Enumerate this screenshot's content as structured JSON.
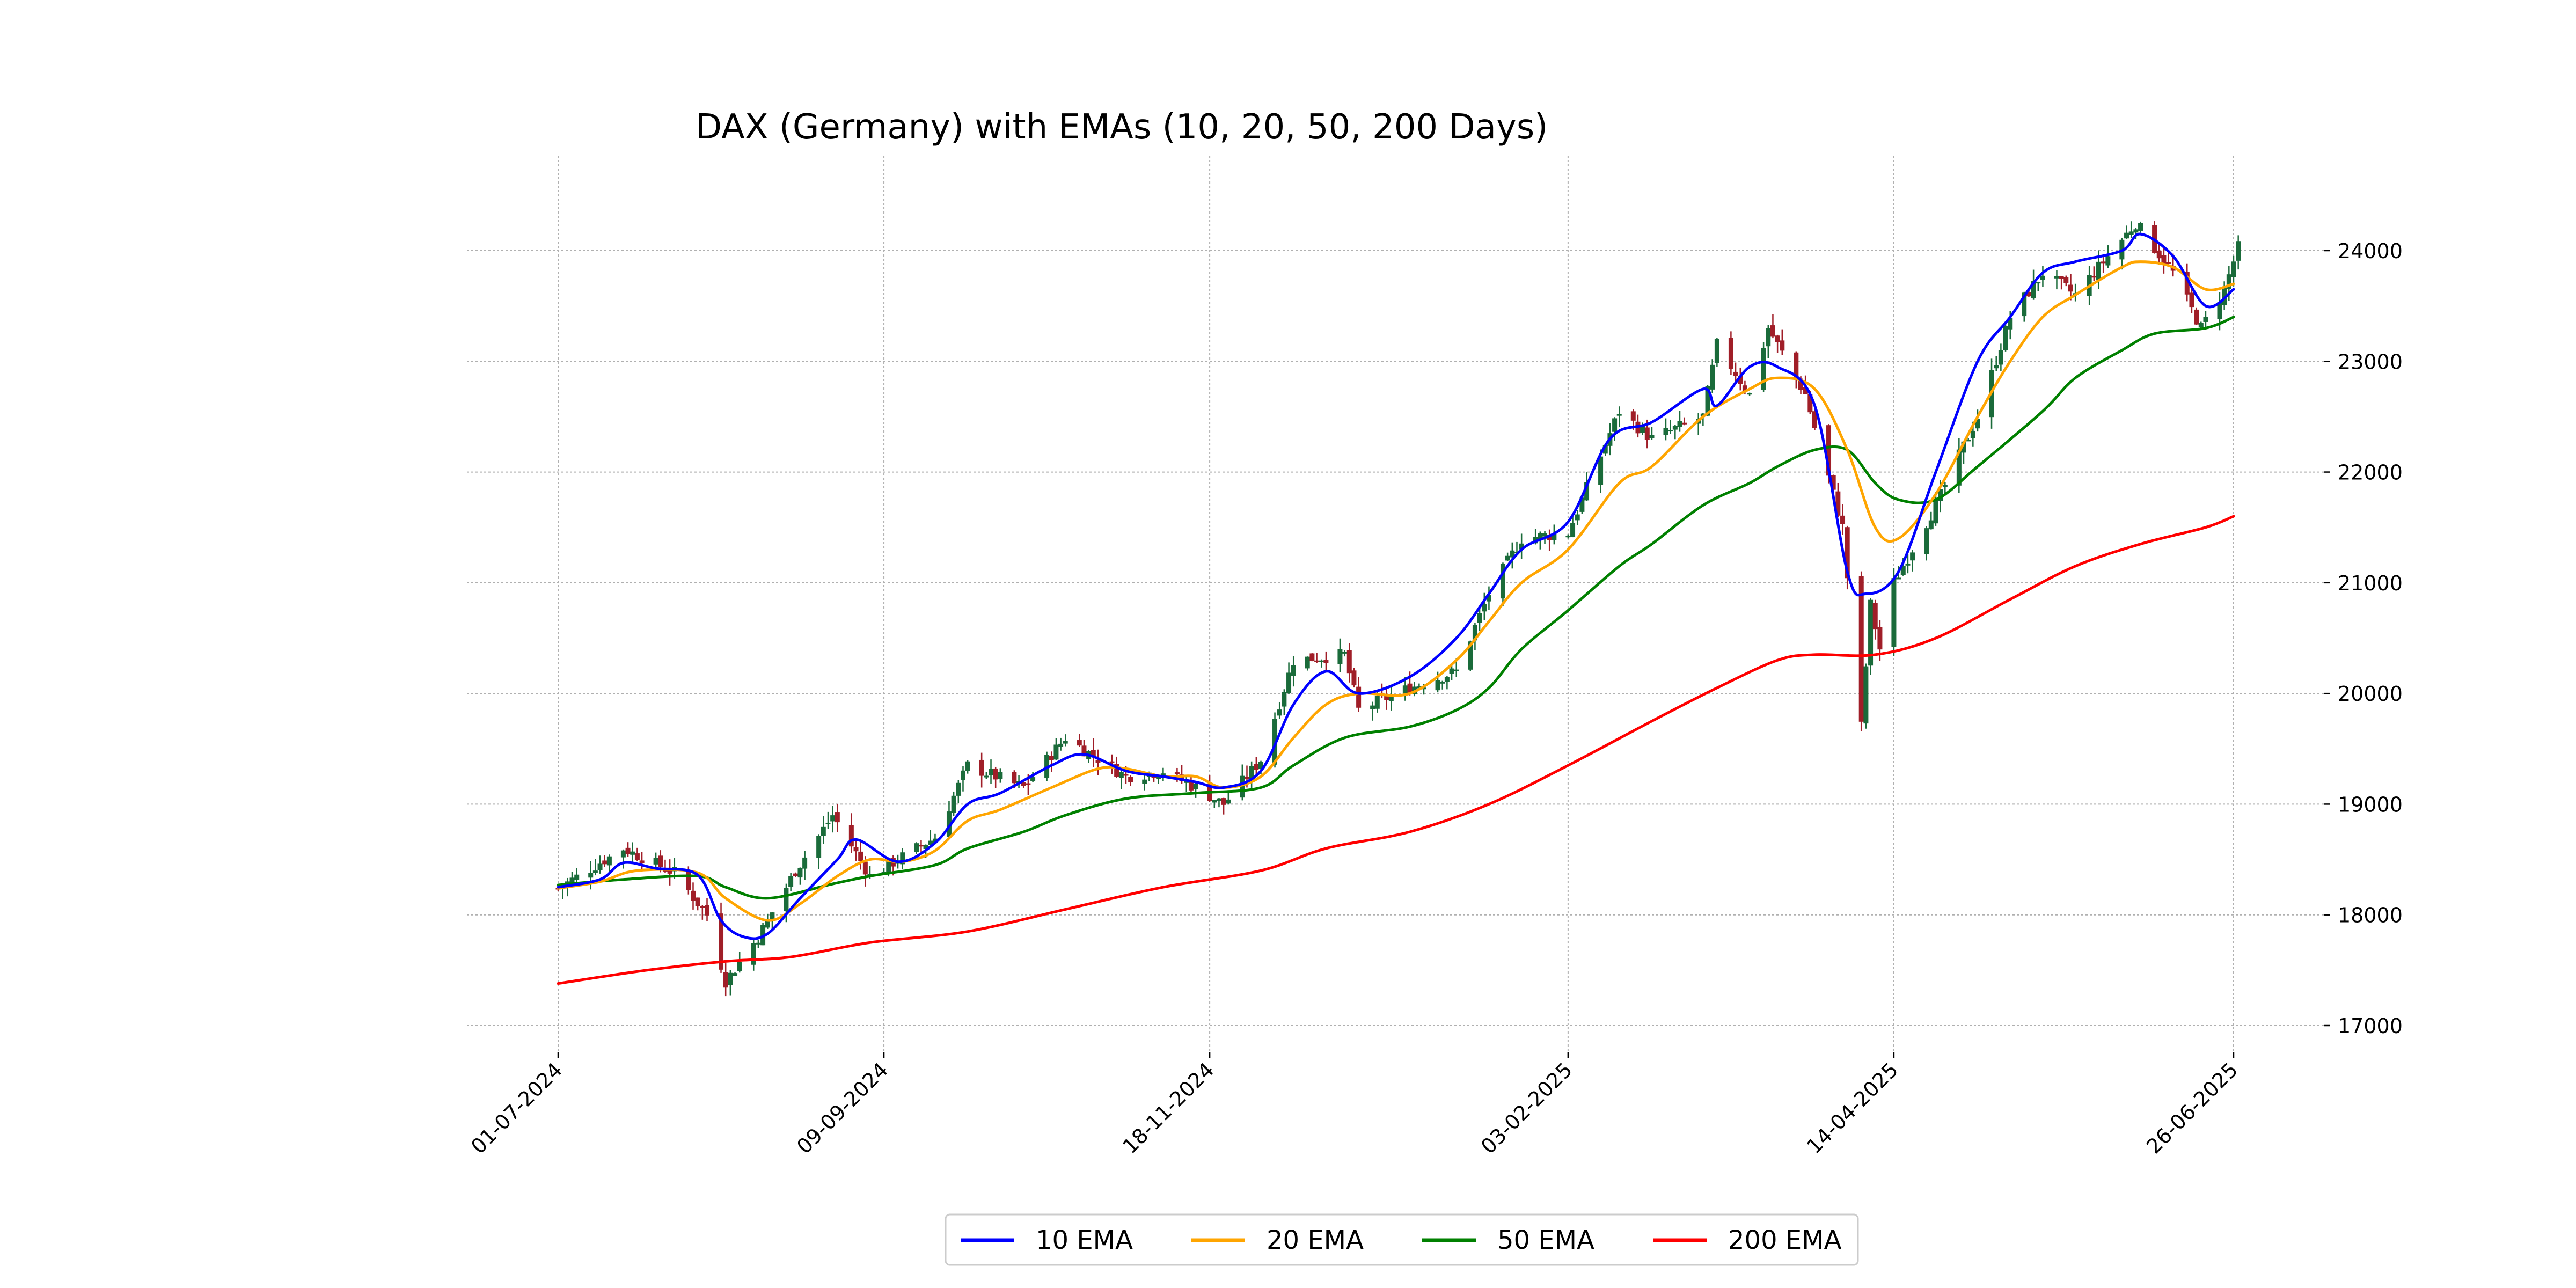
{
  "chart_data": {
    "type": "line",
    "title": "DAX (Germany) with EMAs (10, 20, 50, 200 Days)",
    "xlabel": "",
    "ylabel": "",
    "x_ticks": [
      "01-07-2024",
      "09-09-2024",
      "18-11-2024",
      "03-02-2025",
      "14-04-2025",
      "26-06-2025"
    ],
    "y_ticks": [
      17000,
      18000,
      19000,
      20000,
      21000,
      22000,
      23000,
      24000
    ],
    "ylim": [
      16650,
      24850
    ],
    "xlim": [
      "2024-06-15",
      "2025-07-18"
    ],
    "grid": true,
    "y_axis_side": "right",
    "legend_position": "bottom-center",
    "candlestick": {
      "up_color": "#1a6b3a",
      "down_color": "#a01e28",
      "anchors": [
        [
          "2024-07-01",
          18240
        ],
        [
          "2024-07-15",
          18600
        ],
        [
          "2024-07-26",
          18380
        ],
        [
          "2024-08-02",
          18000
        ],
        [
          "2024-08-06",
          17400
        ],
        [
          "2024-08-13",
          17800
        ],
        [
          "2024-08-21",
          18400
        ],
        [
          "2024-08-29",
          18900
        ],
        [
          "2024-09-06",
          18350
        ],
        [
          "2024-09-20",
          18700
        ],
        [
          "2024-09-27",
          19350
        ],
        [
          "2024-10-09",
          19150
        ],
        [
          "2024-10-18",
          19600
        ],
        [
          "2024-10-31",
          19250
        ],
        [
          "2024-11-08",
          19300
        ],
        [
          "2024-11-15",
          19150
        ],
        [
          "2024-11-21",
          19000
        ],
        [
          "2024-11-29",
          19400
        ],
        [
          "2024-12-06",
          20300
        ],
        [
          "2024-12-17",
          20350
        ],
        [
          "2024-12-20",
          19850
        ],
        [
          "2024-12-31",
          20050
        ],
        [
          "2025-01-10",
          20200
        ],
        [
          "2025-01-17",
          20900
        ],
        [
          "2025-01-24",
          21400
        ],
        [
          "2025-02-03",
          21450
        ],
        [
          "2025-02-14",
          22550
        ],
        [
          "2025-02-21",
          22300
        ],
        [
          "2025-03-04",
          22500
        ],
        [
          "2025-03-07",
          23150
        ],
        [
          "2025-03-14",
          22700
        ],
        [
          "2025-03-18",
          23300
        ],
        [
          "2025-03-26",
          22700
        ],
        [
          "2025-04-03",
          21500
        ],
        [
          "2025-04-07",
          19700
        ],
        [
          "2025-04-09",
          20800
        ],
        [
          "2025-04-11",
          20400
        ],
        [
          "2025-04-14",
          21000
        ],
        [
          "2025-04-23",
          21700
        ],
        [
          "2025-05-02",
          22500
        ],
        [
          "2025-05-09",
          23400
        ],
        [
          "2025-05-16",
          23800
        ],
        [
          "2025-05-23",
          23600
        ],
        [
          "2025-06-05",
          24250
        ],
        [
          "2025-06-13",
          23800
        ],
        [
          "2025-06-19",
          23300
        ],
        [
          "2025-06-24",
          23650
        ],
        [
          "2025-06-27",
          24030
        ]
      ]
    },
    "series": [
      {
        "name": "10 EMA",
        "color": "#0000ff",
        "points": [
          [
            "2024-07-01",
            18250
          ],
          [
            "2024-07-10",
            18320
          ],
          [
            "2024-07-15",
            18470
          ],
          [
            "2024-07-22",
            18420
          ],
          [
            "2024-07-31",
            18360
          ],
          [
            "2024-08-05",
            17950
          ],
          [
            "2024-08-10",
            17800
          ],
          [
            "2024-08-15",
            17830
          ],
          [
            "2024-08-22",
            18150
          ],
          [
            "2024-08-30",
            18500
          ],
          [
            "2024-09-03",
            18680
          ],
          [
            "2024-09-12",
            18480
          ],
          [
            "2024-09-20",
            18650
          ],
          [
            "2024-09-27",
            19000
          ],
          [
            "2024-10-04",
            19100
          ],
          [
            "2024-10-15",
            19350
          ],
          [
            "2024-10-22",
            19450
          ],
          [
            "2024-10-31",
            19300
          ],
          [
            "2024-11-08",
            19250
          ],
          [
            "2024-11-15",
            19200
          ],
          [
            "2024-11-21",
            19150
          ],
          [
            "2024-11-29",
            19300
          ],
          [
            "2024-12-06",
            19900
          ],
          [
            "2024-12-13",
            20200
          ],
          [
            "2024-12-20",
            20000
          ],
          [
            "2024-12-31",
            20150
          ],
          [
            "2025-01-10",
            20500
          ],
          [
            "2025-01-17",
            20900
          ],
          [
            "2025-01-24",
            21300
          ],
          [
            "2025-02-03",
            21550
          ],
          [
            "2025-02-12",
            22300
          ],
          [
            "2025-02-21",
            22450
          ],
          [
            "2025-03-04",
            22750
          ],
          [
            "2025-03-07",
            22600
          ],
          [
            "2025-03-14",
            22950
          ],
          [
            "2025-03-20",
            22950
          ],
          [
            "2025-03-28",
            22600
          ],
          [
            "2025-04-04",
            21100
          ],
          [
            "2025-04-08",
            20900
          ],
          [
            "2025-04-15",
            21100
          ],
          [
            "2025-04-23",
            22000
          ],
          [
            "2025-05-02",
            23000
          ],
          [
            "2025-05-09",
            23400
          ],
          [
            "2025-05-16",
            23800
          ],
          [
            "2025-05-23",
            23900
          ],
          [
            "2025-06-02",
            24000
          ],
          [
            "2025-06-06",
            24150
          ],
          [
            "2025-06-13",
            23950
          ],
          [
            "2025-06-20",
            23500
          ],
          [
            "2025-06-26",
            23650
          ]
        ]
      },
      {
        "name": "20 EMA",
        "color": "#ffa500",
        "points": [
          [
            "2024-07-01",
            18240
          ],
          [
            "2024-07-10",
            18300
          ],
          [
            "2024-07-18",
            18400
          ],
          [
            "2024-07-31",
            18380
          ],
          [
            "2024-08-06",
            18150
          ],
          [
            "2024-08-15",
            17950
          ],
          [
            "2024-08-22",
            18100
          ],
          [
            "2024-08-30",
            18350
          ],
          [
            "2024-09-06",
            18500
          ],
          [
            "2024-09-13",
            18480
          ],
          [
            "2024-09-20",
            18580
          ],
          [
            "2024-09-27",
            18850
          ],
          [
            "2024-10-04",
            18950
          ],
          [
            "2024-10-15",
            19150
          ],
          [
            "2024-10-25",
            19320
          ],
          [
            "2024-10-31",
            19320
          ],
          [
            "2024-11-08",
            19250
          ],
          [
            "2024-11-15",
            19250
          ],
          [
            "2024-11-21",
            19150
          ],
          [
            "2024-11-29",
            19250
          ],
          [
            "2024-12-06",
            19600
          ],
          [
            "2024-12-13",
            19900
          ],
          [
            "2024-12-20",
            20000
          ],
          [
            "2024-12-31",
            20000
          ],
          [
            "2025-01-10",
            20300
          ],
          [
            "2025-01-17",
            20650
          ],
          [
            "2025-01-24",
            21000
          ],
          [
            "2025-02-03",
            21300
          ],
          [
            "2025-02-14",
            21900
          ],
          [
            "2025-02-21",
            22050
          ],
          [
            "2025-03-04",
            22500
          ],
          [
            "2025-03-14",
            22750
          ],
          [
            "2025-03-20",
            22850
          ],
          [
            "2025-03-28",
            22750
          ],
          [
            "2025-04-04",
            22200
          ],
          [
            "2025-04-10",
            21500
          ],
          [
            "2025-04-15",
            21400
          ],
          [
            "2025-04-23",
            21800
          ],
          [
            "2025-05-02",
            22500
          ],
          [
            "2025-05-09",
            23000
          ],
          [
            "2025-05-16",
            23400
          ],
          [
            "2025-05-23",
            23600
          ],
          [
            "2025-06-02",
            23850
          ],
          [
            "2025-06-06",
            23900
          ],
          [
            "2025-06-13",
            23850
          ],
          [
            "2025-06-20",
            23650
          ],
          [
            "2025-06-26",
            23700
          ]
        ]
      },
      {
        "name": "50 EMA",
        "color": "#008000",
        "points": [
          [
            "2024-07-01",
            18270
          ],
          [
            "2024-07-15",
            18320
          ],
          [
            "2024-07-31",
            18350
          ],
          [
            "2024-08-06",
            18250
          ],
          [
            "2024-08-15",
            18150
          ],
          [
            "2024-08-29",
            18280
          ],
          [
            "2024-09-06",
            18350
          ],
          [
            "2024-09-20",
            18450
          ],
          [
            "2024-09-27",
            18600
          ],
          [
            "2024-10-09",
            18750
          ],
          [
            "2024-10-18",
            18900
          ],
          [
            "2024-10-31",
            19050
          ],
          [
            "2024-11-15",
            19100
          ],
          [
            "2024-11-29",
            19150
          ],
          [
            "2024-12-06",
            19350
          ],
          [
            "2024-12-17",
            19600
          ],
          [
            "2024-12-31",
            19700
          ],
          [
            "2025-01-10",
            19850
          ],
          [
            "2025-01-17",
            20050
          ],
          [
            "2025-01-24",
            20400
          ],
          [
            "2025-02-03",
            20750
          ],
          [
            "2025-02-14",
            21150
          ],
          [
            "2025-02-21",
            21350
          ],
          [
            "2025-03-04",
            21700
          ],
          [
            "2025-03-14",
            21900
          ],
          [
            "2025-03-20",
            22050
          ],
          [
            "2025-03-28",
            22200
          ],
          [
            "2025-04-04",
            22200
          ],
          [
            "2025-04-10",
            21900
          ],
          [
            "2025-04-15",
            21750
          ],
          [
            "2025-04-23",
            21750
          ],
          [
            "2025-05-02",
            22050
          ],
          [
            "2025-05-16",
            22550
          ],
          [
            "2025-05-23",
            22850
          ],
          [
            "2025-06-02",
            23100
          ],
          [
            "2025-06-09",
            23250
          ],
          [
            "2025-06-20",
            23300
          ],
          [
            "2025-06-26",
            23400
          ]
        ]
      },
      {
        "name": "200 EMA",
        "color": "#ff0000",
        "points": [
          [
            "2024-07-01",
            17380
          ],
          [
            "2024-07-20",
            17500
          ],
          [
            "2024-08-06",
            17580
          ],
          [
            "2024-08-20",
            17620
          ],
          [
            "2024-09-06",
            17750
          ],
          [
            "2024-09-27",
            17850
          ],
          [
            "2024-10-18",
            18050
          ],
          [
            "2024-11-08",
            18250
          ],
          [
            "2024-11-29",
            18400
          ],
          [
            "2024-12-13",
            18600
          ],
          [
            "2024-12-31",
            18750
          ],
          [
            "2025-01-17",
            19000
          ],
          [
            "2025-02-03",
            19350
          ],
          [
            "2025-02-21",
            19750
          ],
          [
            "2025-03-07",
            20050
          ],
          [
            "2025-03-20",
            20300
          ],
          [
            "2025-03-28",
            20350
          ],
          [
            "2025-04-10",
            20350
          ],
          [
            "2025-04-23",
            20500
          ],
          [
            "2025-05-09",
            20850
          ],
          [
            "2025-05-23",
            21150
          ],
          [
            "2025-06-06",
            21350
          ],
          [
            "2025-06-20",
            21500
          ],
          [
            "2025-06-26",
            21600
          ]
        ]
      }
    ]
  }
}
